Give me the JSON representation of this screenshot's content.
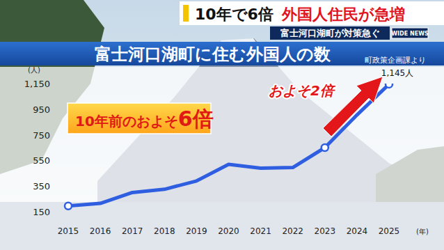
{
  "header": {
    "headline": "10年で6倍",
    "headline_emphasis": "外国人住民が急増",
    "subheadline": "富士河口湖町が対策急ぐ",
    "logo": "WIDE NEWS"
  },
  "chart_data": {
    "type": "line",
    "title": "富士河口湖町に住む外国人の数",
    "source": "町政策企画課より",
    "y_label": "(人)",
    "x_label": "(年)",
    "categories": [
      "2015",
      "2016",
      "2017",
      "2018",
      "2019",
      "2020",
      "2021",
      "2022",
      "2023",
      "2024",
      "2025"
    ],
    "series": [
      {
        "color": "#2f5fe0",
        "line_style": "solid",
        "values": [
          195,
          215,
          300,
          325,
          390,
          520,
          490,
          495,
          650,
          905,
          1145
        ]
      },
      {
        "color": "#2f5fe0",
        "marker": "circle",
        "line_style": "none",
        "values": [
          195,
          null,
          null,
          null,
          null,
          null,
          null,
          null,
          650,
          null,
          1145
        ],
        "value_labels": [
          null,
          null,
          null,
          null,
          null,
          null,
          null,
          null,
          null,
          null,
          "1,145人"
        ]
      }
    ],
    "ylim": [
      150,
      1150
    ],
    "yticks": [
      150,
      350,
      550,
      750,
      950,
      {
        "value": 1150,
        "label": "1,150"
      }
    ],
    "grid": false,
    "data_labels": true,
    "annotations": [
      {
        "text": "10年前のおよそ6倍"
      },
      {
        "text": "およそ2倍"
      }
    ]
  }
}
